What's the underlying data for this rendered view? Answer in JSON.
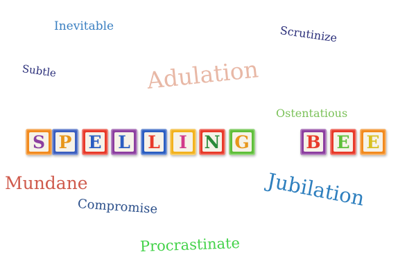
{
  "words": {
    "inevitable": {
      "text": "Inevitable",
      "color": "#3a7fc1"
    },
    "scrutinize": {
      "text": "Scrutinize",
      "color": "#2b2f7a"
    },
    "subtle": {
      "text": "Subtle",
      "color": "#2b2f7a"
    },
    "adulation": {
      "text": "Adulation",
      "color": "#e8b8a6"
    },
    "ostentatious": {
      "text": "Ostentatious",
      "color": "#7cc25a"
    },
    "mundane": {
      "text": "Mundane",
      "color": "#cf5a4c"
    },
    "jubilation": {
      "text": "Jubilation",
      "color": "#2e7fbe"
    },
    "compromise": {
      "text": "Compromise",
      "color": "#2b4f8a"
    },
    "procrastinate": {
      "text": "Procrastinate",
      "color": "#44d24a"
    }
  },
  "blocks": [
    {
      "letter": "S",
      "frame": "#f28a1e",
      "text": "#8c3fa0"
    },
    {
      "letter": "P",
      "frame": "#3b5fc0",
      "text": "#e7961a"
    },
    {
      "letter": "E",
      "frame": "#e83a2a",
      "text": "#2b5ec2"
    },
    {
      "letter": "L",
      "frame": "#8c3fa0",
      "text": "#2b5ec2"
    },
    {
      "letter": "L",
      "frame": "#2b5ec2",
      "text": "#e83a2a"
    },
    {
      "letter": "I",
      "frame": "#f2b21e",
      "text": "#d23a8a"
    },
    {
      "letter": "N",
      "frame": "#e83a2a",
      "text": "#2b8a3a"
    },
    {
      "letter": "G",
      "frame": "#5fbf3a",
      "text": "#e7961a"
    },
    {
      "letter": "B",
      "frame": "#8c3fa0",
      "text": "#e83a2a"
    },
    {
      "letter": "E",
      "frame": "#e83a2a",
      "text": "#5fbf3a"
    },
    {
      "letter": "E",
      "frame": "#f28a1e",
      "text": "#d8c020"
    }
  ]
}
